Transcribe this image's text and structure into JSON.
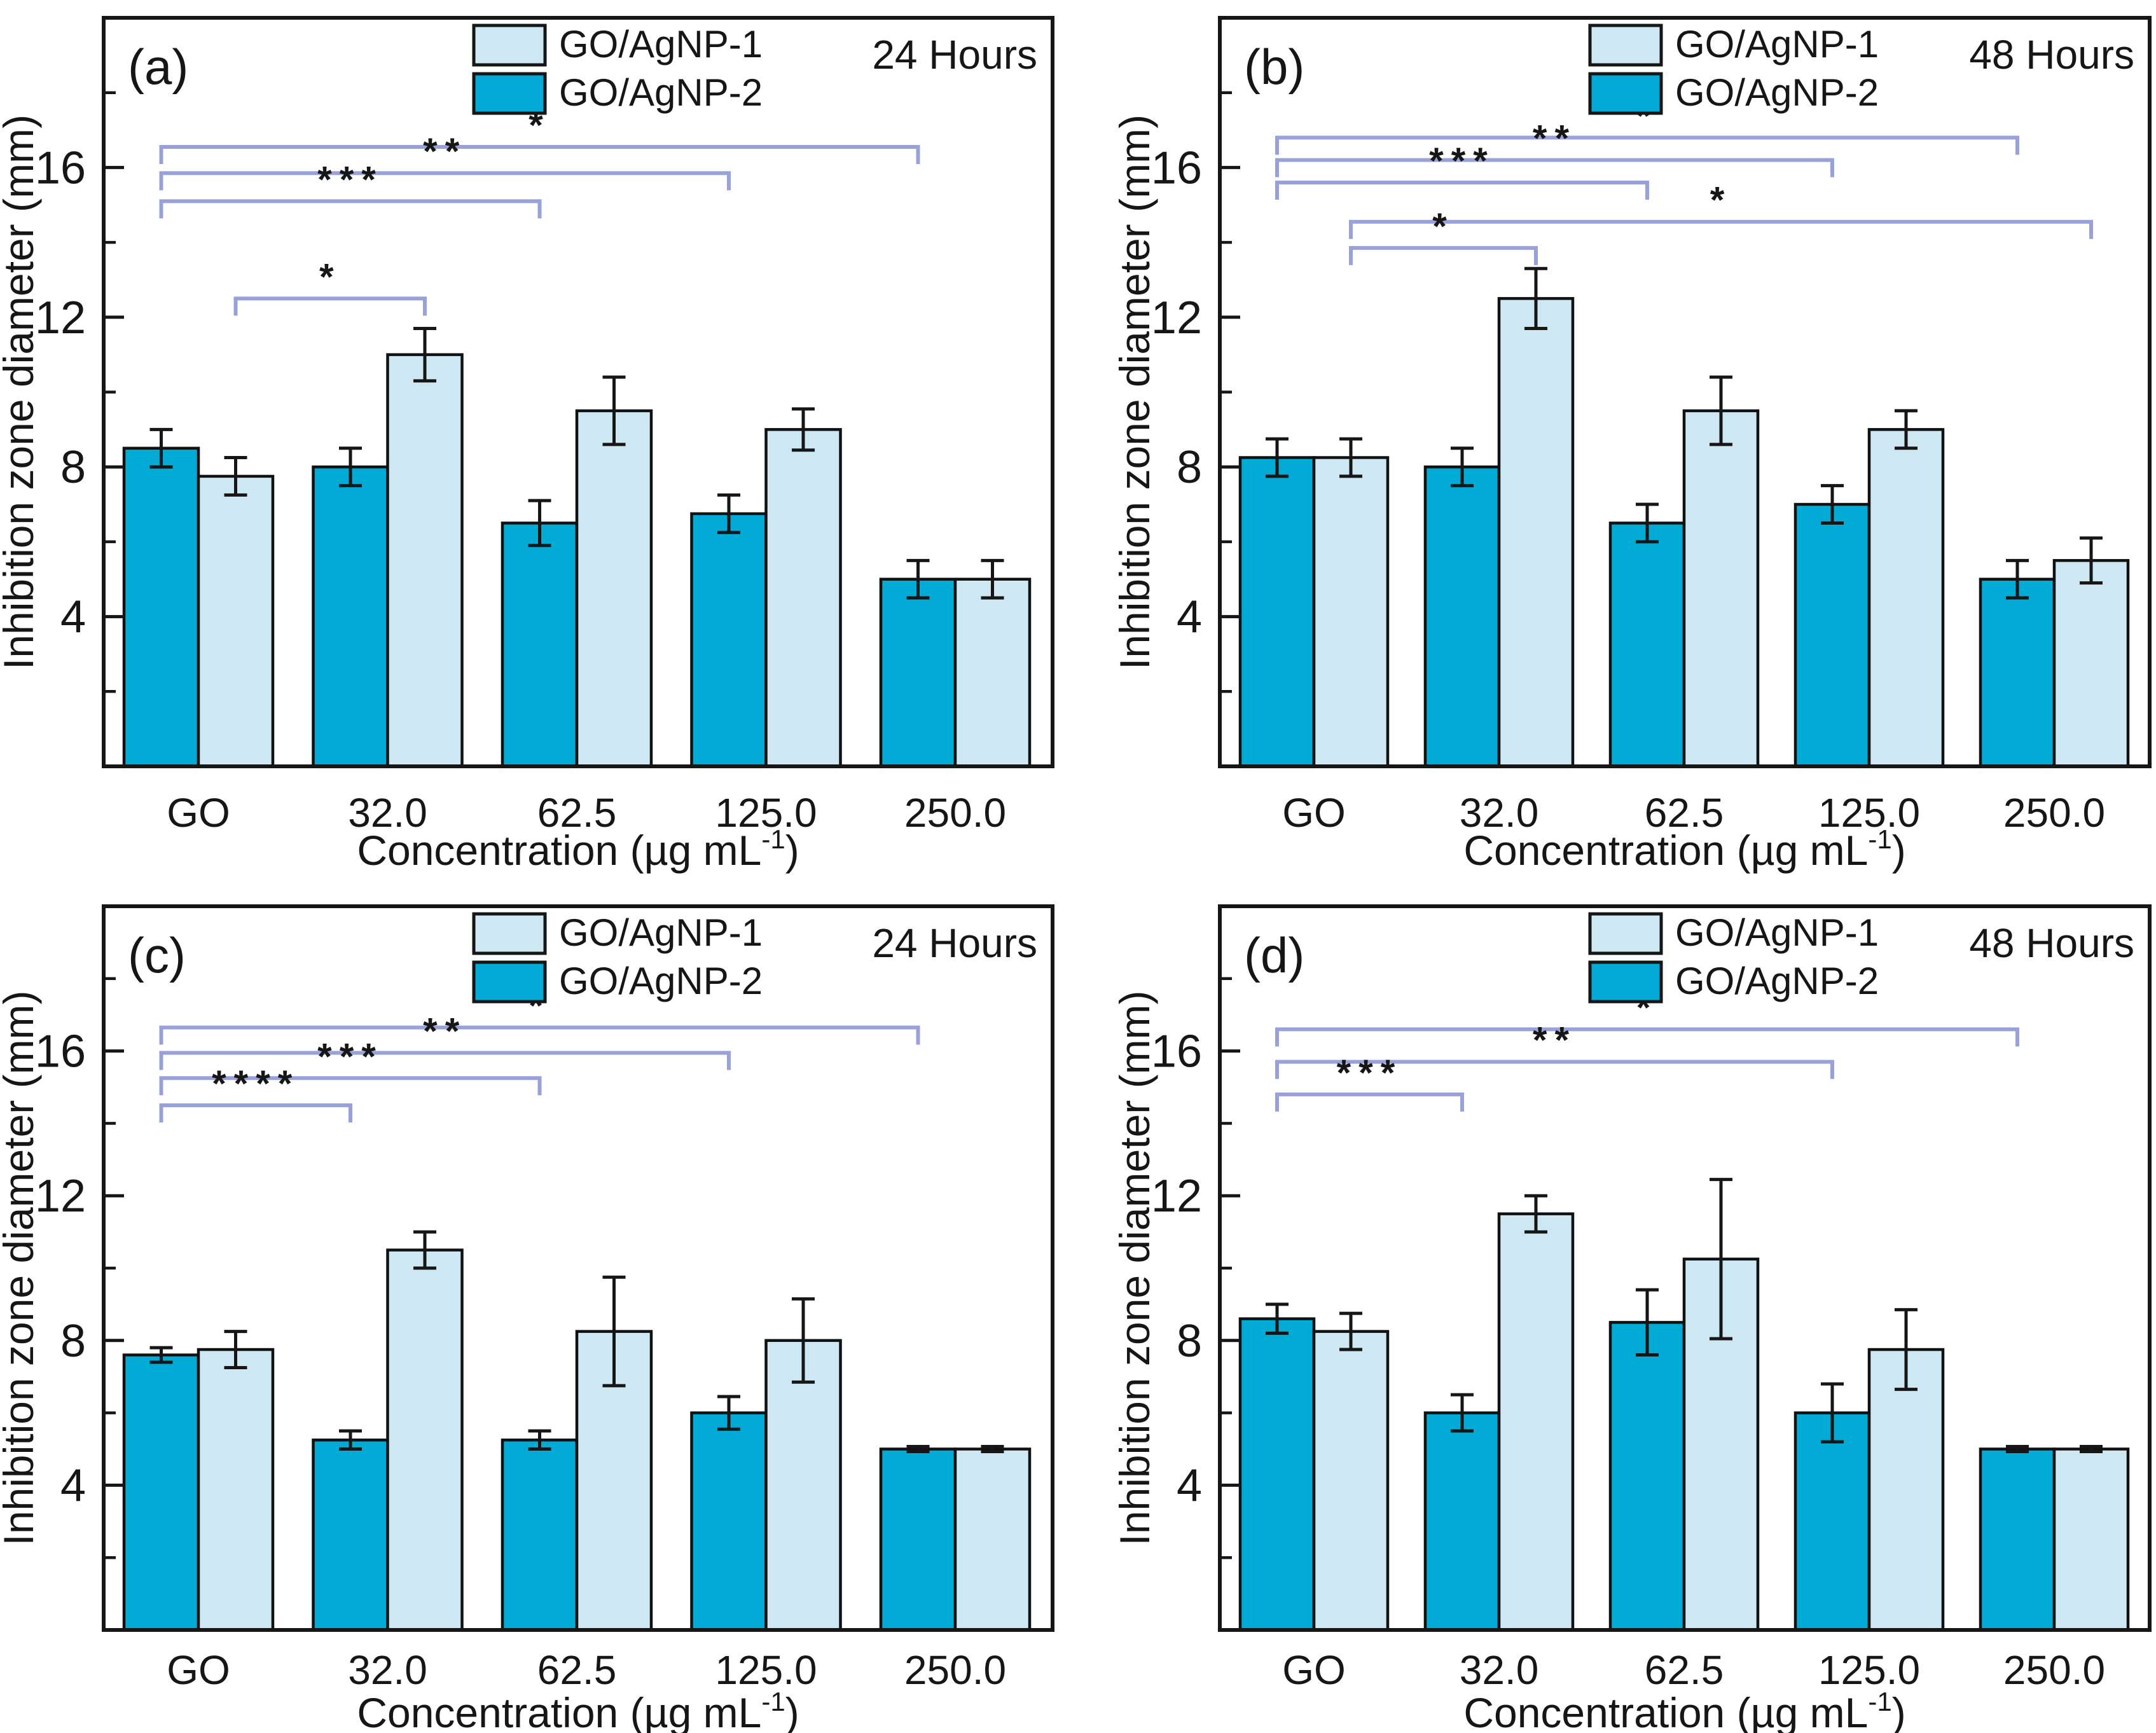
{
  "figure": {
    "background": "#ffffff",
    "ink": "#161616",
    "bar_outline": "#111111",
    "bracket_color": "#99a1da",
    "legend": [
      {
        "label": "GO/AgNP-1",
        "color": "#cde8f2"
      },
      {
        "label": "GO/AgNP-2",
        "color": "#02abd5"
      }
    ],
    "series_colors": {
      "GO/AgNP-1": "#cde8f2",
      "GO/AgNP-2": "#02abd5"
    }
  },
  "chart_data": [
    {
      "type": "bar",
      "panel_tag": "(a)",
      "annotation": "24 Hours",
      "categories": [
        "GO",
        "32.0",
        "62.5",
        "125.0",
        "250.0"
      ],
      "xlabel": "Concentration (µg mL⁻¹)",
      "xlabel_parts": {
        "pre": "Concentration (µg mL",
        "sup": "-1",
        "post": ")"
      },
      "ylabel": "Inhibition zone diameter (mm)",
      "ylim": [
        0,
        20
      ],
      "yticks": [
        4,
        8,
        12,
        16
      ],
      "yticks_minor": [
        2,
        6,
        10,
        14,
        18
      ],
      "grid": false,
      "legend_position": "top-center",
      "series": [
        {
          "name": "GO/AgNP-2",
          "values": [
            8.5,
            8.0,
            6.5,
            6.75,
            5.0
          ],
          "errors": [
            0.5,
            0.5,
            0.6,
            0.5,
            0.5
          ]
        },
        {
          "name": "GO/AgNP-1",
          "values": [
            7.75,
            11.0,
            9.5,
            9.0,
            5.0
          ],
          "errors": [
            0.5,
            0.7,
            0.9,
            0.55,
            0.5
          ]
        }
      ],
      "significance": [
        {
          "from_category": "GO",
          "from_series": "GO/AgNP-2",
          "to_category": "250.0",
          "to_series": "GO/AgNP-2",
          "y": 16.55,
          "label": "*"
        },
        {
          "from_category": "GO",
          "from_series": "GO/AgNP-2",
          "to_category": "125.0",
          "to_series": "GO/AgNP-2",
          "y": 15.85,
          "label": "**"
        },
        {
          "from_category": "GO",
          "from_series": "GO/AgNP-2",
          "to_category": "62.5",
          "to_series": "GO/AgNP-2",
          "y": 15.1,
          "label": "***"
        },
        {
          "from_category": "GO",
          "from_series": "GO/AgNP-1",
          "to_category": "32.0",
          "to_series": "GO/AgNP-1",
          "y": 12.5,
          "label": "*"
        }
      ]
    },
    {
      "type": "bar",
      "panel_tag": "(b)",
      "annotation": "48 Hours",
      "categories": [
        "GO",
        "32.0",
        "62.5",
        "125.0",
        "250.0"
      ],
      "xlabel": "Concentration (µg mL⁻¹)",
      "xlabel_parts": {
        "pre": "Concentration (µg mL",
        "sup": "-1",
        "post": ")"
      },
      "ylabel": "Inhibition zone diameter (mm)",
      "ylim": [
        0,
        20
      ],
      "yticks": [
        4,
        8,
        12,
        16
      ],
      "yticks_minor": [
        2,
        6,
        10,
        14,
        18
      ],
      "grid": false,
      "legend_position": "top-center",
      "series": [
        {
          "name": "GO/AgNP-2",
          "values": [
            8.25,
            8.0,
            6.5,
            7.0,
            5.0
          ],
          "errors": [
            0.5,
            0.5,
            0.5,
            0.5,
            0.5
          ]
        },
        {
          "name": "GO/AgNP-1",
          "values": [
            8.25,
            12.5,
            9.5,
            9.0,
            5.5
          ],
          "errors": [
            0.5,
            0.8,
            0.9,
            0.5,
            0.6
          ]
        }
      ],
      "significance": [
        {
          "from_category": "GO",
          "from_series": "GO/AgNP-2",
          "to_category": "250.0",
          "to_series": "GO/AgNP-2",
          "y": 16.8,
          "label": "*"
        },
        {
          "from_category": "GO",
          "from_series": "GO/AgNP-2",
          "to_category": "125.0",
          "to_series": "GO/AgNP-2",
          "y": 16.2,
          "label": "**"
        },
        {
          "from_category": "GO",
          "from_series": "GO/AgNP-2",
          "to_category": "62.5",
          "to_series": "GO/AgNP-2",
          "y": 15.6,
          "label": "***"
        },
        {
          "from_category": "GO",
          "from_series": "GO/AgNP-1",
          "to_category": "250.0",
          "to_series": "GO/AgNP-1",
          "y": 14.55,
          "label": "*"
        },
        {
          "from_category": "GO",
          "from_series": "GO/AgNP-1",
          "to_category": "32.0",
          "to_series": "GO/AgNP-1",
          "y": 13.85,
          "label": "*"
        }
      ]
    },
    {
      "type": "bar",
      "panel_tag": "(c)",
      "annotation": "24 Hours",
      "categories": [
        "GO",
        "32.0",
        "62.5",
        "125.0",
        "250.0"
      ],
      "xlabel": "Concentration (µg mL⁻¹)",
      "xlabel_parts": {
        "pre": "Concentration (µg mL",
        "sup": "-1",
        "post": ")"
      },
      "ylabel": "Inhibition zone diameter (mm)",
      "ylim": [
        0,
        20
      ],
      "yticks": [
        4,
        8,
        12,
        16
      ],
      "yticks_minor": [
        2,
        6,
        10,
        14,
        18
      ],
      "grid": false,
      "legend_position": "top-center",
      "series": [
        {
          "name": "GO/AgNP-2",
          "values": [
            7.6,
            5.25,
            5.25,
            6.0,
            5.0
          ],
          "errors": [
            0.2,
            0.25,
            0.25,
            0.45,
            0.07
          ]
        },
        {
          "name": "GO/AgNP-1",
          "values": [
            7.75,
            10.5,
            8.25,
            8.0,
            5.0
          ],
          "errors": [
            0.5,
            0.5,
            1.5,
            1.15,
            0.07
          ]
        }
      ],
      "significance": [
        {
          "from_category": "GO",
          "from_series": "GO/AgNP-2",
          "to_category": "250.0",
          "to_series": "GO/AgNP-2",
          "y": 16.65,
          "label": "*"
        },
        {
          "from_category": "GO",
          "from_series": "GO/AgNP-2",
          "to_category": "125.0",
          "to_series": "GO/AgNP-2",
          "y": 15.95,
          "label": "**"
        },
        {
          "from_category": "GO",
          "from_series": "GO/AgNP-2",
          "to_category": "62.5",
          "to_series": "GO/AgNP-2",
          "y": 15.25,
          "label": "***"
        },
        {
          "from_category": "GO",
          "from_series": "GO/AgNP-2",
          "to_category": "32.0",
          "to_series": "GO/AgNP-2",
          "y": 14.5,
          "label": "****"
        }
      ]
    },
    {
      "type": "bar",
      "panel_tag": "(d)",
      "annotation": "48 Hours",
      "categories": [
        "GO",
        "32.0",
        "62.5",
        "125.0",
        "250.0"
      ],
      "xlabel": "Concentration (µg mL⁻¹)",
      "xlabel_parts": {
        "pre": "Concentration (µg mL",
        "sup": "-1",
        "post": ")"
      },
      "ylabel": "Inhibition zone diameter (mm)",
      "ylim": [
        0,
        20
      ],
      "yticks": [
        4,
        8,
        12,
        16
      ],
      "yticks_minor": [
        2,
        6,
        10,
        14,
        18
      ],
      "grid": false,
      "legend_position": "top-center",
      "series": [
        {
          "name": "GO/AgNP-2",
          "values": [
            8.6,
            6.0,
            8.5,
            6.0,
            5.0
          ],
          "errors": [
            0.4,
            0.5,
            0.9,
            0.8,
            0.07
          ]
        },
        {
          "name": "GO/AgNP-1",
          "values": [
            8.25,
            11.5,
            10.25,
            7.75,
            5.0
          ],
          "errors": [
            0.5,
            0.5,
            2.2,
            1.1,
            0.07
          ]
        }
      ],
      "significance": [
        {
          "from_category": "GO",
          "from_series": "GO/AgNP-2",
          "to_category": "250.0",
          "to_series": "GO/AgNP-2",
          "y": 16.6,
          "label": "*"
        },
        {
          "from_category": "GO",
          "from_series": "GO/AgNP-2",
          "to_category": "125.0",
          "to_series": "GO/AgNP-2",
          "y": 15.7,
          "label": "**"
        },
        {
          "from_category": "GO",
          "from_series": "GO/AgNP-2",
          "to_category": "32.0",
          "to_series": "GO/AgNP-2",
          "y": 14.8,
          "label": "***"
        }
      ]
    }
  ]
}
